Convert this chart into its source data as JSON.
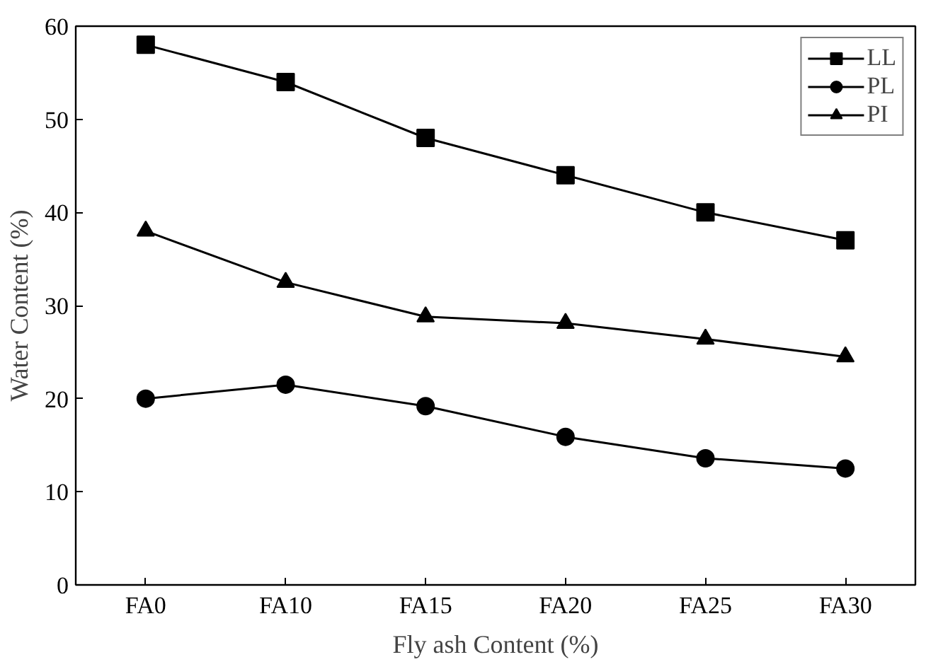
{
  "chart_data": {
    "type": "line",
    "xlabel": "Fly ash Content (%)",
    "ylabel": "Water Content (%)",
    "categories": [
      "FA0",
      "FA10",
      "FA15",
      "FA20",
      "FA25",
      "FA30"
    ],
    "series": [
      {
        "name": "LL",
        "color": "#000000",
        "marker": "square",
        "values": [
          58,
          54,
          48,
          44,
          40,
          37
        ]
      },
      {
        "name": "PL",
        "color": "#000000",
        "marker": "circle",
        "values": [
          20,
          21.5,
          19.2,
          15.9,
          13.6,
          12.5
        ]
      },
      {
        "name": "PI",
        "color": "#000000",
        "marker": "triangle",
        "values": [
          38,
          32.5,
          28.8,
          28.1,
          26.4,
          24.5
        ]
      }
    ],
    "ylim": [
      0,
      60
    ],
    "yticks": [
      0,
      10,
      20,
      30,
      40,
      50,
      60
    ],
    "legend": "top right",
    "grid": false,
    "line_style": "solid"
  }
}
